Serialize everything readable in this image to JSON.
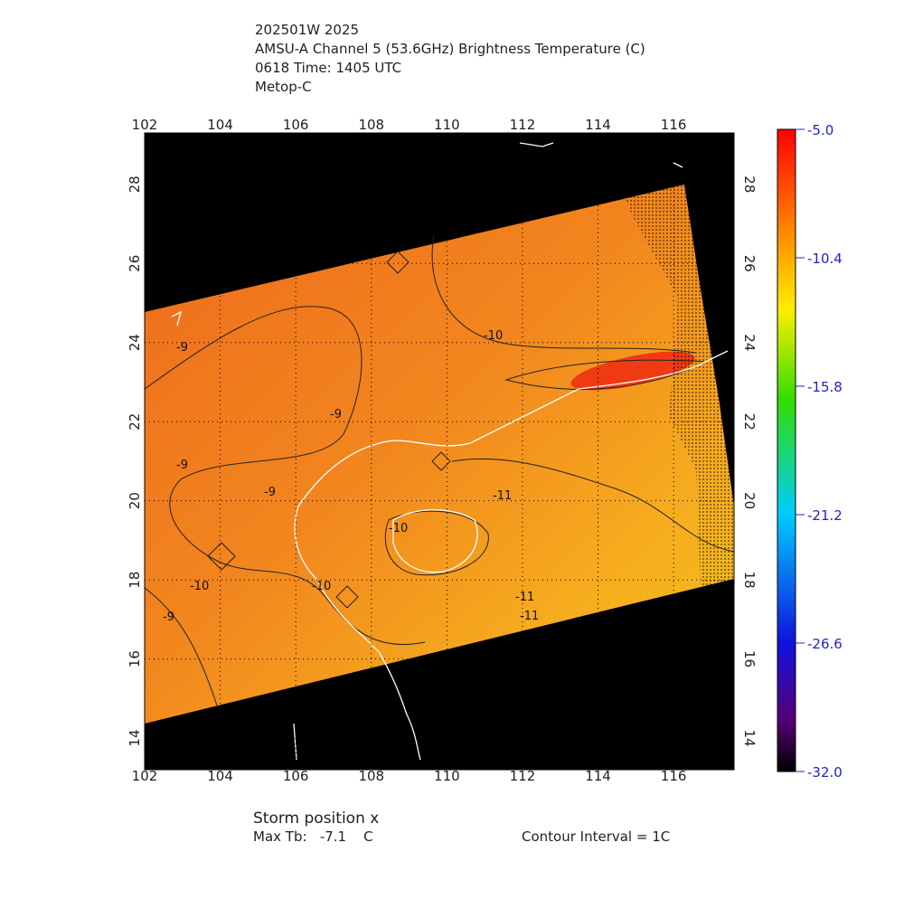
{
  "header": {
    "lines": [
      "202501W 2025",
      "AMSU-A Channel 5 (53.6GHz) Brightness Temperature (C)",
      "0618 Time: 1405 UTC",
      "Metop-C"
    ]
  },
  "map": {
    "lon_range": [
      102,
      117.6
    ],
    "lat_range": [
      13.2,
      29.3
    ],
    "lon_ticks": [
      102,
      104,
      106,
      108,
      110,
      112,
      114,
      116
    ],
    "lat_ticks": [
      14,
      16,
      18,
      20,
      22,
      24,
      26,
      28
    ],
    "contour_labels": [
      "-9",
      "-9",
      "-9",
      "-9",
      "-10",
      "-10",
      "-10",
      "-10",
      "-11",
      "-11",
      "-11",
      "-9"
    ]
  },
  "colorbar": {
    "range": [
      -32,
      -5
    ],
    "ticks": [
      {
        "value": -5,
        "label": "-5.0"
      },
      {
        "value": -10.4,
        "label": "-10.4"
      },
      {
        "value": -15.8,
        "label": "-15.8"
      },
      {
        "value": -21.2,
        "label": "-21.2"
      },
      {
        "value": -26.6,
        "label": "-26.6"
      },
      {
        "value": -32,
        "label": "-32.0"
      }
    ]
  },
  "footer": {
    "storm": "Storm position x",
    "max_tb": "Max Tb:   -7.1    C",
    "interval": "Contour Interval = 1C"
  }
}
